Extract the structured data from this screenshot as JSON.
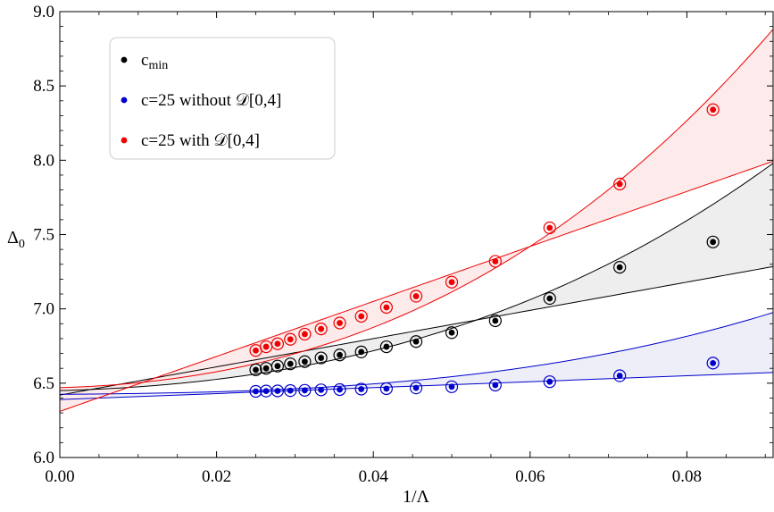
{
  "chart_data": {
    "type": "scatter",
    "title": "",
    "xlabel": "1/Λ",
    "ylabel": "Δ0",
    "xlim": [
      0,
      0.091
    ],
    "ylim": [
      6.0,
      9.0
    ],
    "grid": false,
    "legend_position": "top-left",
    "xticks": [
      "0.00",
      "0.02",
      "0.04",
      "0.06",
      "0.08"
    ],
    "xtick_values": [
      0,
      0.02,
      0.04,
      0.06,
      0.08
    ],
    "yticks": [
      "6.0",
      "6.5",
      "7.0",
      "7.5",
      "8.0",
      "8.5",
      "9.0"
    ],
    "ytick_values": [
      6.0,
      6.5,
      7.0,
      7.5,
      8.0,
      8.5,
      9.0
    ],
    "legend": [
      {
        "label_main": "c",
        "label_sub": "min",
        "color": "#000000"
      },
      {
        "label_main": "c=25 without 𝒟[0,4]",
        "label_sub": "",
        "color": "#0000cc"
      },
      {
        "label_main": "c=25 with 𝒟[0,4]",
        "label_sub": "",
        "color": "#ee0000"
      }
    ],
    "series": [
      {
        "color": "#000000",
        "fill": "#eeeeee",
        "x": [
          0.025,
          0.02632,
          0.02778,
          0.02941,
          0.03125,
          0.03333,
          0.03571,
          0.03846,
          0.04167,
          0.04545,
          0.05,
          0.05556,
          0.0625,
          0.07143,
          0.08333
        ],
        "y": [
          6.59,
          6.6,
          6.615,
          6.63,
          6.645,
          6.67,
          6.69,
          6.71,
          6.745,
          6.78,
          6.84,
          6.92,
          7.07,
          7.28,
          7.45
        ],
        "circled_count": 14,
        "fit_lower": {
          "intercept": 6.42,
          "slope": 9.5,
          "quad": 0
        },
        "fit_upper": {
          "intercept": 6.45,
          "slope": 1.5,
          "quad": 100,
          "cubic": 750
        }
      },
      {
        "color": "#0000cc",
        "fill": "#eeeef8",
        "x": [
          0.025,
          0.02632,
          0.02778,
          0.02941,
          0.03125,
          0.03333,
          0.03571,
          0.03846,
          0.04167,
          0.04545,
          0.05,
          0.05556,
          0.0625,
          0.07143,
          0.08333
        ],
        "y": [
          6.445,
          6.447,
          6.448,
          6.45,
          6.452,
          6.455,
          6.457,
          6.46,
          6.463,
          6.468,
          6.476,
          6.487,
          6.51,
          6.55,
          6.635
        ],
        "circled_count": 14,
        "fit_lower": {
          "intercept": 6.39,
          "slope": 2.0,
          "quad": 0
        },
        "fit_upper": {
          "intercept": 6.425,
          "slope": 0.4,
          "quad": 12,
          "cubic": 550
        }
      },
      {
        "color": "#ee0000",
        "fill": "#fdeaea",
        "x": [
          0.025,
          0.02632,
          0.02778,
          0.02941,
          0.03125,
          0.03333,
          0.03571,
          0.03846,
          0.04167,
          0.04545,
          0.05,
          0.05556,
          0.0625,
          0.07143,
          0.08333
        ],
        "y": [
          6.72,
          6.745,
          6.765,
          6.795,
          6.83,
          6.865,
          6.905,
          6.95,
          7.01,
          7.085,
          7.18,
          7.32,
          7.545,
          7.84,
          8.34
        ],
        "circled_count": 15,
        "fit_lower": {
          "intercept": 6.31,
          "slope": 18.5,
          "quad": 0
        },
        "fit_upper": {
          "intercept": 6.47,
          "slope": 1.5,
          "quad": 170,
          "cubic": 1150
        }
      }
    ]
  }
}
